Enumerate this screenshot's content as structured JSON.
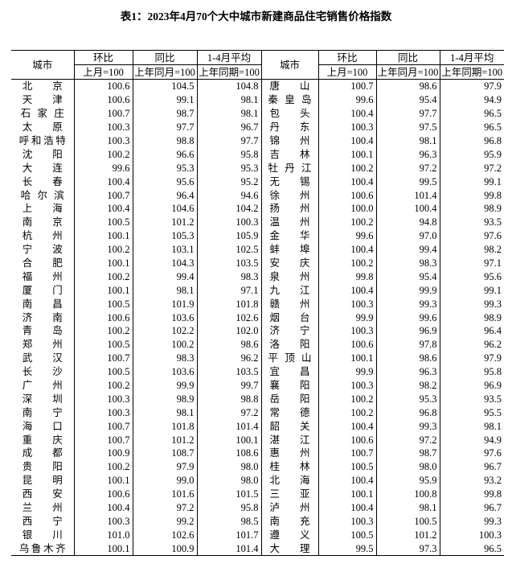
{
  "title": "表1：2023年4月70个大中城市新建商品住宅销售价格指数",
  "headers": {
    "city": "城市",
    "mom": "环比",
    "yoy": "同比",
    "ytd": "1-4月平均",
    "mom_base": "上月=100",
    "yoy_base": "上年同月=100",
    "ytd_base": "上年同期=100"
  },
  "left_rows": [
    [
      "北　京",
      "100.6",
      "104.5",
      "104.8"
    ],
    [
      "天　津",
      "100.6",
      "99.1",
      "98.1"
    ],
    [
      "石家庄",
      "100.7",
      "98.7",
      "98.1"
    ],
    [
      "太　原",
      "100.3",
      "97.7",
      "96.7"
    ],
    [
      "呼和浩特",
      "100.3",
      "98.8",
      "97.7"
    ],
    [
      "沈　阳",
      "100.2",
      "96.6",
      "95.8"
    ],
    [
      "大　连",
      "99.6",
      "95.3",
      "95.3"
    ],
    [
      "长　春",
      "100.4",
      "95.6",
      "95.2"
    ],
    [
      "哈尔滨",
      "100.7",
      "96.4",
      "94.6"
    ],
    [
      "上　海",
      "100.4",
      "104.6",
      "104.2"
    ],
    [
      "南　京",
      "100.5",
      "101.2",
      "100.3"
    ],
    [
      "杭　州",
      "100.1",
      "105.3",
      "105.9"
    ],
    [
      "宁　波",
      "100.2",
      "103.1",
      "102.5"
    ],
    [
      "合　肥",
      "100.1",
      "104.3",
      "103.5"
    ],
    [
      "福　州",
      "100.2",
      "99.4",
      "98.3"
    ],
    [
      "厦　门",
      "100.1",
      "98.1",
      "97.1"
    ],
    [
      "南　昌",
      "100.5",
      "101.9",
      "101.8"
    ],
    [
      "济　南",
      "100.6",
      "103.6",
      "102.6"
    ],
    [
      "青　岛",
      "100.2",
      "102.2",
      "102.0"
    ],
    [
      "郑　州",
      "100.5",
      "100.2",
      "98.6"
    ],
    [
      "武　汉",
      "100.7",
      "98.3",
      "96.2"
    ],
    [
      "长　沙",
      "100.5",
      "103.6",
      "103.5"
    ],
    [
      "广　州",
      "100.2",
      "99.9",
      "99.7"
    ],
    [
      "深　圳",
      "100.3",
      "98.9",
      "98.8"
    ],
    [
      "南　宁",
      "100.3",
      "98.1",
      "97.2"
    ],
    [
      "海　口",
      "100.7",
      "101.8",
      "101.4"
    ],
    [
      "重　庆",
      "100.7",
      "101.2",
      "100.1"
    ],
    [
      "成　都",
      "100.9",
      "108.7",
      "108.6"
    ],
    [
      "贵　阳",
      "100.2",
      "97.9",
      "98.0"
    ],
    [
      "昆　明",
      "100.1",
      "99.0",
      "98.0"
    ],
    [
      "西　安",
      "100.6",
      "101.6",
      "101.5"
    ],
    [
      "兰　州",
      "100.4",
      "97.2",
      "95.8"
    ],
    [
      "西　宁",
      "100.3",
      "99.2",
      "98.5"
    ],
    [
      "银　川",
      "101.0",
      "102.6",
      "101.7"
    ],
    [
      "乌鲁木齐",
      "100.1",
      "100.9",
      "101.4"
    ]
  ],
  "right_rows": [
    [
      "唐　山",
      "100.7",
      "98.6",
      "97.9"
    ],
    [
      "秦皇岛",
      "99.6",
      "95.4",
      "94.9"
    ],
    [
      "包　头",
      "100.4",
      "97.7",
      "96.5"
    ],
    [
      "丹　东",
      "100.3",
      "97.5",
      "96.5"
    ],
    [
      "锦　州",
      "100.4",
      "98.1",
      "96.8"
    ],
    [
      "吉　林",
      "100.1",
      "96.3",
      "95.9"
    ],
    [
      "牡丹江",
      "100.2",
      "97.2",
      "97.2"
    ],
    [
      "无　锡",
      "100.4",
      "99.5",
      "99.1"
    ],
    [
      "徐　州",
      "100.6",
      "101.4",
      "99.8"
    ],
    [
      "扬　州",
      "100.0",
      "100.4",
      "98.9"
    ],
    [
      "温　州",
      "100.2",
      "94.8",
      "93.5"
    ],
    [
      "金　华",
      "99.6",
      "97.0",
      "97.6"
    ],
    [
      "蚌　埠",
      "100.4",
      "99.4",
      "98.2"
    ],
    [
      "安　庆",
      "100.2",
      "98.3",
      "97.1"
    ],
    [
      "泉　州",
      "99.8",
      "95.4",
      "95.6"
    ],
    [
      "九　江",
      "100.4",
      "99.9",
      "99.1"
    ],
    [
      "赣　州",
      "100.3",
      "99.3",
      "99.3"
    ],
    [
      "烟　台",
      "99.9",
      "99.6",
      "98.9"
    ],
    [
      "济　宁",
      "100.3",
      "96.9",
      "96.4"
    ],
    [
      "洛　阳",
      "100.6",
      "97.8",
      "96.2"
    ],
    [
      "平顶山",
      "100.1",
      "98.6",
      "97.9"
    ],
    [
      "宜　昌",
      "99.9",
      "96.3",
      "95.8"
    ],
    [
      "襄　阳",
      "100.3",
      "98.2",
      "96.9"
    ],
    [
      "岳　阳",
      "100.2",
      "95.3",
      "93.5"
    ],
    [
      "常　德",
      "100.2",
      "96.8",
      "95.5"
    ],
    [
      "韶　关",
      "100.4",
      "99.3",
      "98.1"
    ],
    [
      "湛　江",
      "100.6",
      "97.2",
      "94.9"
    ],
    [
      "惠　州",
      "100.7",
      "98.7",
      "97.6"
    ],
    [
      "桂　林",
      "100.5",
      "98.0",
      "96.7"
    ],
    [
      "北　海",
      "100.4",
      "95.9",
      "93.2"
    ],
    [
      "三　亚",
      "100.1",
      "100.8",
      "99.8"
    ],
    [
      "泸　州",
      "100.4",
      "98.1",
      "96.7"
    ],
    [
      "南　充",
      "100.3",
      "100.5",
      "99.3"
    ],
    [
      "遵　义",
      "100.5",
      "101.2",
      "100.3"
    ],
    [
      "大　理",
      "99.5",
      "97.3",
      "96.5"
    ]
  ]
}
